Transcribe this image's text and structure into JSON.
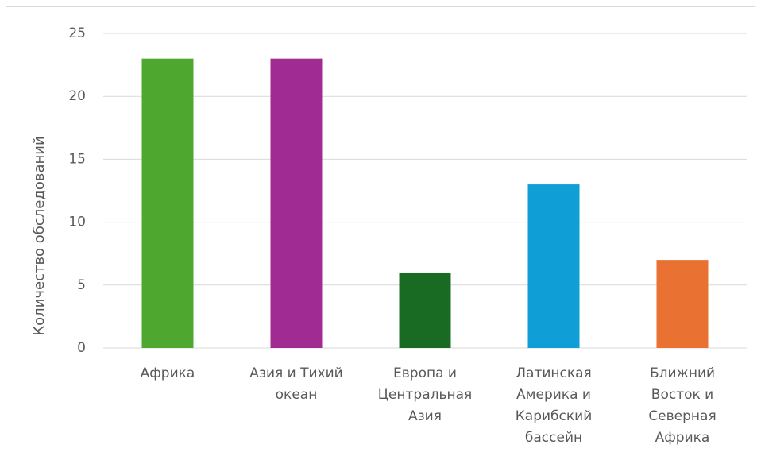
{
  "chart_data": {
    "type": "bar",
    "title": "",
    "xlabel": "",
    "ylabel": "Количество обследований",
    "ylim": [
      0,
      25
    ],
    "yticks": [
      0,
      5,
      10,
      15,
      20,
      25
    ],
    "grid": true,
    "legend": "none",
    "categories": [
      [
        "Африка"
      ],
      [
        "Азия и Тихий",
        "океан"
      ],
      [
        "Европа и",
        "Центральная",
        "Азия"
      ],
      [
        "Латинская",
        "Америка и",
        "Карибский",
        "бассейн"
      ],
      [
        "Ближний",
        "Восток и",
        "Северная",
        "Африка"
      ]
    ],
    "values": [
      23,
      23,
      6,
      13,
      7
    ],
    "colors": [
      "#4ea72e",
      "#a02b93",
      "#196b24",
      "#0f9ed5",
      "#e97132"
    ]
  }
}
